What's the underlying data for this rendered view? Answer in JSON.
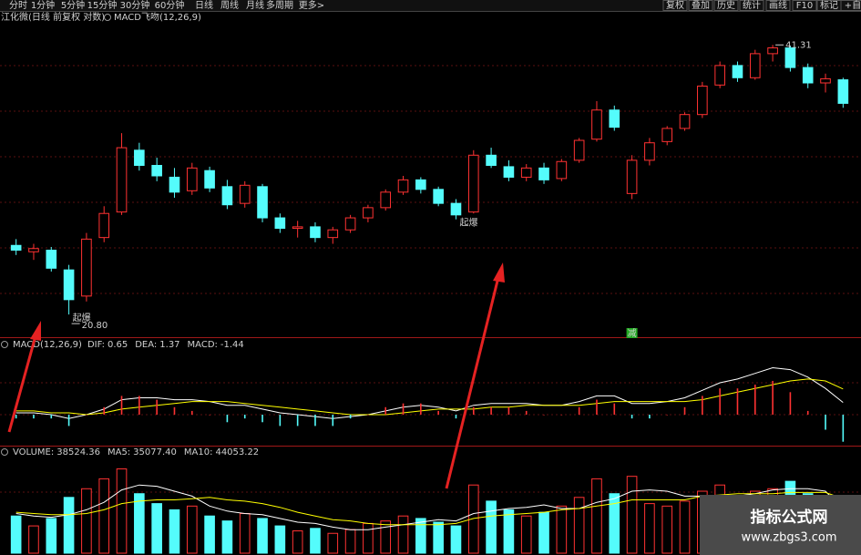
{
  "toolbar": {
    "periods": [
      "分时",
      "1分钟",
      "5分钟",
      "15分钟",
      "30分钟",
      "60分钟",
      "日线",
      "周线",
      "月线",
      "多周期",
      "更多>"
    ],
    "active_period": 6,
    "tools": [
      "复权",
      "叠加",
      "历史",
      "统计",
      "画线",
      "F10",
      "标记",
      "+自"
    ]
  },
  "chart_data": [
    {
      "type": "candlestick",
      "title": "江化微(日线 前复权 对数)",
      "indicator": "MACD飞吻(12,26,9)",
      "log_scale": true,
      "ylim": [
        20,
        43
      ],
      "up_color": "#ff3232",
      "down_color": "#54fcfc",
      "open": [
        24.8,
        24.4,
        24.5,
        23.3,
        21.8,
        25.3,
        27.0,
        31.6,
        30.4,
        29.5,
        28.5,
        30.0,
        28.8,
        27.6,
        28.8,
        26.6,
        25.9,
        26.0,
        25.3,
        25.8,
        26.6,
        27.3,
        28.4,
        29.3,
        28.6,
        27.6,
        27.0,
        31.2,
        30.3,
        29.5,
        30.2,
        29.4,
        30.8,
        32.5,
        35.0,
        28.3,
        30.8,
        32.3,
        33.4,
        34.6,
        37.3,
        39.2,
        38.0,
        40.4,
        41.0,
        39.0,
        37.5,
        37.8
      ],
      "high": [
        25.2,
        24.9,
        24.7,
        23.6,
        25.6,
        27.4,
        33.0,
        32.2,
        31.0,
        30.2,
        30.6,
        30.3,
        29.3,
        29.2,
        29.0,
        26.9,
        26.4,
        26.3,
        26.0,
        26.8,
        27.5,
        28.6,
        29.6,
        29.5,
        28.8,
        27.9,
        31.6,
        31.8,
        30.8,
        30.5,
        30.6,
        30.9,
        32.6,
        35.8,
        35.4,
        31.2,
        32.6,
        33.6,
        34.8,
        37.6,
        39.6,
        39.6,
        40.8,
        41.31,
        41.2,
        39.4,
        38.4,
        38.0
      ],
      "low": [
        24.2,
        23.9,
        23.2,
        20.8,
        21.5,
        25.0,
        26.8,
        30.0,
        29.2,
        28.0,
        28.2,
        28.4,
        27.2,
        27.3,
        26.3,
        25.6,
        25.3,
        25.0,
        24.9,
        25.6,
        26.3,
        27.1,
        28.2,
        28.3,
        27.4,
        26.5,
        26.9,
        30.2,
        29.2,
        29.2,
        29.0,
        29.2,
        30.6,
        32.3,
        33.2,
        27.9,
        30.4,
        32.0,
        33.2,
        34.3,
        37.0,
        37.6,
        37.8,
        39.6,
        38.6,
        37.0,
        36.6,
        35.2
      ],
      "close": [
        24.5,
        24.6,
        23.4,
        21.6,
        25.2,
        26.9,
        31.8,
        30.4,
        29.6,
        28.4,
        30.2,
        28.7,
        27.5,
        28.9,
        26.6,
        25.9,
        26.0,
        25.3,
        25.8,
        26.6,
        27.3,
        28.4,
        29.3,
        28.6,
        27.6,
        26.8,
        31.2,
        30.4,
        29.5,
        30.2,
        29.3,
        30.7,
        32.4,
        35.0,
        33.5,
        30.8,
        32.2,
        33.4,
        34.6,
        37.2,
        39.2,
        38.0,
        40.4,
        41.0,
        39.0,
        37.5,
        37.9,
        35.6
      ],
      "max_label": "41.31",
      "min_label": "20.80",
      "signals": [
        {
          "label": "起爆",
          "index": 3,
          "color": "#ffffff"
        },
        {
          "label": "起爆",
          "index": 25,
          "color": "#ffffff"
        },
        {
          "label": "减",
          "index": 35,
          "color": "#22aa22"
        }
      ]
    },
    {
      "type": "macd",
      "title": "MACD(12,26,9)",
      "ylim": [
        -1.6,
        3.4
      ],
      "series": [
        {
          "name": "DIF:",
          "color": "#ffffff",
          "style": "line",
          "current": 0.65,
          "values": [
            0.1,
            0.1,
            0.0,
            -0.2,
            0.0,
            0.3,
            0.8,
            0.9,
            0.9,
            0.8,
            0.8,
            0.7,
            0.5,
            0.5,
            0.3,
            0.1,
            0.0,
            -0.1,
            -0.2,
            -0.1,
            0.0,
            0.2,
            0.4,
            0.5,
            0.4,
            0.2,
            0.5,
            0.6,
            0.6,
            0.6,
            0.5,
            0.5,
            0.7,
            1.0,
            1.0,
            0.6,
            0.6,
            0.7,
            0.9,
            1.3,
            1.7,
            1.9,
            2.2,
            2.5,
            2.4,
            2.0,
            1.4,
            0.65
          ]
        },
        {
          "name": "DEA:",
          "color": "#ffff00",
          "style": "line",
          "current": 1.37,
          "values": [
            0.2,
            0.2,
            0.1,
            0.1,
            0.0,
            0.1,
            0.3,
            0.4,
            0.5,
            0.6,
            0.7,
            0.7,
            0.7,
            0.6,
            0.5,
            0.4,
            0.3,
            0.2,
            0.1,
            0.0,
            0.0,
            0.0,
            0.1,
            0.2,
            0.3,
            0.3,
            0.3,
            0.4,
            0.4,
            0.5,
            0.5,
            0.5,
            0.5,
            0.6,
            0.7,
            0.7,
            0.7,
            0.7,
            0.7,
            0.8,
            1.0,
            1.2,
            1.4,
            1.6,
            1.8,
            1.9,
            1.8,
            1.37
          ]
        },
        {
          "name": "MACD:",
          "color": "#ff44ff",
          "style": "bar",
          "up_color": "#ff3232",
          "down_color": "#54fcfc",
          "current": -1.44,
          "values": [
            -0.2,
            -0.2,
            -0.2,
            -0.6,
            0.0,
            0.4,
            1.0,
            1.0,
            0.8,
            0.4,
            0.2,
            0.0,
            -0.4,
            -0.2,
            -0.4,
            -0.6,
            -0.6,
            -0.6,
            -0.6,
            -0.2,
            0.0,
            0.4,
            0.6,
            0.6,
            0.2,
            -0.2,
            0.4,
            0.4,
            0.4,
            0.2,
            0.0,
            0.0,
            0.4,
            0.8,
            0.6,
            -0.2,
            -0.2,
            0.0,
            0.4,
            1.0,
            1.4,
            1.4,
            1.6,
            1.8,
            1.2,
            0.2,
            -0.8,
            -1.44
          ]
        }
      ]
    },
    {
      "type": "volume",
      "ylim": [
        0,
        75000
      ],
      "series": [
        {
          "name": "VOLUME:",
          "color": "#d0d0d0",
          "style": "bar",
          "current": 38524.36,
          "values": [
            30000,
            22000,
            28000,
            45000,
            52000,
            60000,
            68000,
            48000,
            40000,
            35000,
            38000,
            30000,
            26000,
            32000,
            28000,
            22000,
            18000,
            20000,
            16000,
            19000,
            24000,
            26000,
            30000,
            28000,
            25000,
            22000,
            55000,
            42000,
            35000,
            30000,
            33000,
            38000,
            45000,
            60000,
            48000,
            62000,
            40000,
            38000,
            42000,
            50000,
            55000,
            45000,
            50000,
            52000,
            58000,
            48000,
            40000,
            38524.36
          ]
        },
        {
          "name": "MA5:",
          "color": "#ffffff",
          "style": "line",
          "current": {
            "value": 35077.4,
            "label": "35077.40"
          },
          "values": [
            32000,
            30000,
            29000,
            31000,
            35000,
            41000,
            51000,
            55000,
            54000,
            50000,
            46000,
            38000,
            34000,
            32000,
            31000,
            28000,
            25000,
            24000,
            21000,
            19000,
            19000,
            21000,
            23000,
            25000,
            27000,
            26000,
            32000,
            34000,
            36000,
            37000,
            39000,
            36000,
            36000,
            41000,
            44000,
            50000,
            51000,
            50000,
            46000,
            46000,
            45000,
            46000,
            48000,
            51000,
            52000,
            52000,
            50000,
            35077.4
          ]
        },
        {
          "name": "MA10:",
          "color": "#ffff00",
          "style": "line",
          "current": 44053.22,
          "values": [
            33000,
            32000,
            31000,
            31000,
            32000,
            35000,
            40000,
            42000,
            43000,
            43000,
            44000,
            45000,
            43000,
            42000,
            40000,
            37000,
            33000,
            30000,
            27000,
            26000,
            24000,
            23000,
            23000,
            23000,
            23000,
            24000,
            28000,
            30000,
            31000,
            32000,
            33000,
            35000,
            36000,
            38000,
            40000,
            43000,
            43000,
            43000,
            43000,
            46000,
            47000,
            48000,
            48000,
            48000,
            49000,
            49000,
            49000,
            44053.22
          ]
        }
      ]
    }
  ],
  "watermark": {
    "title": "指标公式网",
    "url": "www.zbgs3.com"
  }
}
